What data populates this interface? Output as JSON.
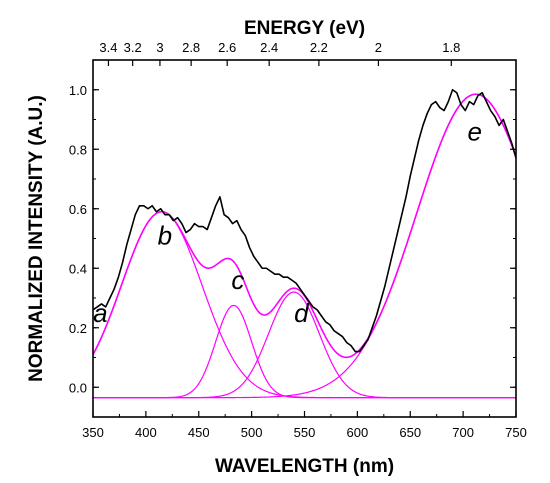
{
  "chart_data": {
    "type": "line",
    "top_axis_label": "ENERGY (eV)",
    "xlabel": "WAVELENGTH (nm)",
    "ylabel": "NORMALIZED INTENSITY (A.U.)",
    "xlim": [
      350,
      750
    ],
    "ylim": [
      -0.1,
      1.1
    ],
    "x_ticks": [
      350,
      400,
      450,
      500,
      550,
      600,
      650,
      700,
      750
    ],
    "y_ticks": [
      0.0,
      0.2,
      0.4,
      0.6,
      0.8,
      1.0
    ],
    "y_tick_labels": [
      "0.0",
      "0.2",
      "0.4",
      "0.6",
      "0.8",
      "1.0"
    ],
    "top_ticks": [
      {
        "label": "3.4",
        "nm": 364.6
      },
      {
        "label": "3.2",
        "nm": 387.5
      },
      {
        "label": "3",
        "nm": 413.3
      },
      {
        "label": "2.8",
        "nm": 442.8
      },
      {
        "label": "2.6",
        "nm": 476.9
      },
      {
        "label": "2.4",
        "nm": 516.6
      },
      {
        "label": "2.2",
        "nm": 563.6
      },
      {
        "label": "2",
        "nm": 619.9
      },
      {
        "label": "1.8",
        "nm": 688.8
      }
    ],
    "baseline": -0.035,
    "colors": {
      "measured": "#000000",
      "fit": "#ff00ff"
    },
    "gaussian_peaks": [
      {
        "name": "b",
        "center": 415,
        "sigma": 38,
        "height": 0.625
      },
      {
        "name": "c",
        "center": 483,
        "sigma": 17,
        "height": 0.31
      },
      {
        "name": "d",
        "center": 540,
        "sigma": 24,
        "height": 0.355
      },
      {
        "name": "e",
        "center": 712,
        "sigma": 56,
        "height": 1.02
      }
    ],
    "peak_labels": [
      {
        "text": "a",
        "x": 357,
        "y": 0.22
      },
      {
        "text": "b",
        "x": 418,
        "y": 0.48
      },
      {
        "text": "c",
        "x": 487,
        "y": 0.33
      },
      {
        "text": "d",
        "x": 547,
        "y": 0.22
      },
      {
        "text": "e",
        "x": 711,
        "y": 0.83
      }
    ],
    "measured_series": {
      "x": [
        350,
        354,
        358,
        362,
        366,
        370,
        374,
        378,
        382,
        386,
        390,
        394,
        398,
        402,
        406,
        410,
        414,
        418,
        422,
        426,
        430,
        434,
        438,
        442,
        446,
        450,
        454,
        458,
        462,
        466,
        470,
        474,
        478,
        482,
        486,
        490,
        494,
        498,
        502,
        506,
        510,
        514,
        518,
        522,
        526,
        530,
        534,
        538,
        542,
        546,
        550,
        554,
        558,
        562,
        566,
        570,
        574,
        578,
        582,
        586,
        590,
        594,
        598,
        602,
        606,
        610,
        614,
        618,
        622,
        626,
        630,
        634,
        638,
        642,
        646,
        650,
        654,
        658,
        662,
        666,
        670,
        674,
        678,
        682,
        686,
        690,
        694,
        698,
        702,
        706,
        710,
        714,
        718,
        722,
        726,
        730,
        734,
        738,
        742,
        746,
        750
      ],
      "y": [
        0.26,
        0.27,
        0.28,
        0.27,
        0.3,
        0.33,
        0.37,
        0.42,
        0.48,
        0.53,
        0.58,
        0.61,
        0.61,
        0.6,
        0.61,
        0.59,
        0.6,
        0.58,
        0.58,
        0.56,
        0.57,
        0.55,
        0.52,
        0.53,
        0.55,
        0.54,
        0.54,
        0.53,
        0.57,
        0.61,
        0.64,
        0.58,
        0.57,
        0.55,
        0.56,
        0.53,
        0.51,
        0.47,
        0.44,
        0.42,
        0.4,
        0.4,
        0.39,
        0.38,
        0.38,
        0.37,
        0.37,
        0.36,
        0.35,
        0.33,
        0.31,
        0.29,
        0.27,
        0.26,
        0.24,
        0.22,
        0.21,
        0.19,
        0.18,
        0.17,
        0.15,
        0.14,
        0.12,
        0.12,
        0.14,
        0.16,
        0.2,
        0.24,
        0.29,
        0.34,
        0.4,
        0.46,
        0.52,
        0.58,
        0.64,
        0.71,
        0.77,
        0.83,
        0.88,
        0.92,
        0.95,
        0.96,
        0.94,
        0.93,
        0.96,
        1.0,
        0.99,
        0.95,
        0.93,
        0.96,
        0.95,
        0.98,
        0.99,
        0.96,
        0.93,
        0.91,
        0.88,
        0.9,
        0.86,
        0.82,
        0.77
      ]
    }
  }
}
